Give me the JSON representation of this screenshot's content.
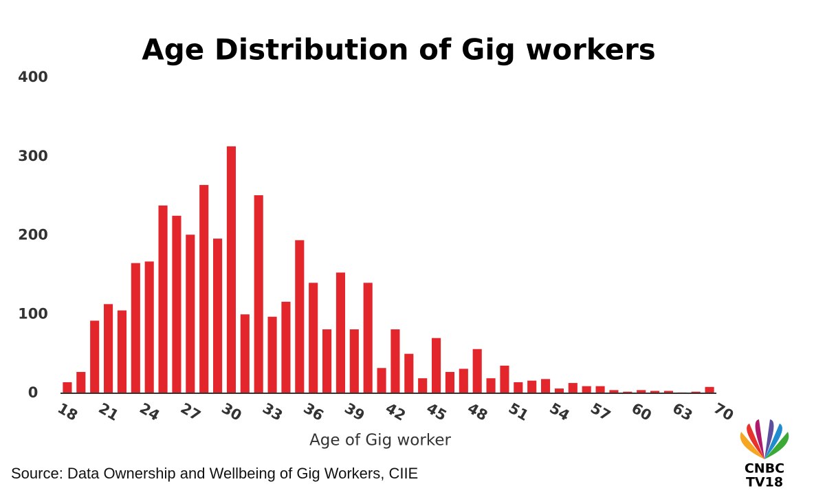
{
  "chart_data": {
    "type": "bar",
    "title": "Age Distribution of Gig workers",
    "x_label": "Age of Gig worker",
    "categories": [
      "18",
      null,
      null,
      "21",
      null,
      null,
      "24",
      null,
      null,
      "27",
      null,
      null,
      "30",
      null,
      null,
      "33",
      null,
      null,
      "36",
      null,
      null,
      "39",
      null,
      null,
      "42",
      null,
      null,
      "45",
      null,
      null,
      "48",
      null,
      null,
      "51",
      null,
      null,
      "54",
      null,
      null,
      "57",
      null,
      null,
      "60",
      null,
      null,
      "63",
      null,
      "70"
    ],
    "values": [
      14,
      27,
      92,
      113,
      105,
      165,
      167,
      238,
      225,
      201,
      264,
      196,
      313,
      100,
      251,
      97,
      116,
      194,
      140,
      81,
      153,
      81,
      140,
      32,
      81,
      50,
      19,
      70,
      27,
      31,
      56,
      19,
      35,
      14,
      16,
      18,
      6,
      13,
      9,
      9,
      4,
      2,
      4,
      3,
      3,
      1,
      2,
      8
    ],
    "color": "#e3262b",
    "ylim": [
      0,
      400
    ],
    "yticks": [
      0,
      100,
      200,
      300,
      400
    ],
    "grid": false
  },
  "source": "Source: Data Ownership and Wellbeing of Gig Workers, CIIE",
  "logo": {
    "line1": "CNBC",
    "line2": "TV18"
  }
}
